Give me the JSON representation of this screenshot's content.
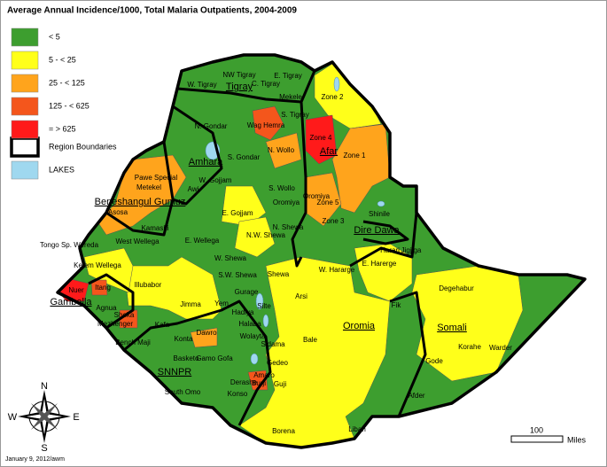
{
  "title": "Average Annual Incidence/1000, Total Malaria Outpatients, 2004-2009",
  "legend": [
    {
      "label": "< 5",
      "color": "#3d9e2f"
    },
    {
      "label": "5 - < 25",
      "color": "#ffff1a"
    },
    {
      "label": "25 - < 125",
      "color": "#ffa41c"
    },
    {
      "label": "125 - < 625",
      "color": "#f4561c"
    },
    {
      "label": "= > 625",
      "color": "#ff1a1a"
    }
  ],
  "region_boundaries_label": "Region Boundaries",
  "lakes_label": "LAKES",
  "lakes_color": "#9fd8ef",
  "regions": [
    "Tigray",
    "Amhara",
    "Afar",
    "Beneshangul Gumuz",
    "Dire Dawa",
    "Oromia",
    "Somali",
    "Gambella",
    "SNNPR"
  ],
  "zones": [
    {
      "label": "W. Tigray",
      "color": "#3d9e2f"
    },
    {
      "label": "NW Tigray",
      "color": "#3d9e2f"
    },
    {
      "label": "C. Tigray",
      "color": "#3d9e2f"
    },
    {
      "label": "E. Tigray",
      "color": "#3d9e2f"
    },
    {
      "label": "Mekele",
      "color": "#3d9e2f"
    },
    {
      "label": "S. Tigray",
      "color": "#3d9e2f"
    },
    {
      "label": "Zone 2",
      "color": "#ffff1a"
    },
    {
      "label": "N. Gondar",
      "color": "#3d9e2f"
    },
    {
      "label": "Wag Hemra",
      "color": "#f4561c"
    },
    {
      "label": "Zone 4",
      "color": "#ff1a1a"
    },
    {
      "label": "Zone 1",
      "color": "#ffa41c"
    },
    {
      "label": "S. Gondar",
      "color": "#3d9e2f"
    },
    {
      "label": "N. Wollo",
      "color": "#ffa41c"
    },
    {
      "label": "Awi",
      "color": "#3d9e2f"
    },
    {
      "label": "Metekel",
      "color": "#ffa41c"
    },
    {
      "label": "Pawe Special",
      "color": "#ffa41c"
    },
    {
      "label": "W. Gojjam",
      "color": "#3d9e2f"
    },
    {
      "label": "S. Wollo",
      "color": "#3d9e2f"
    },
    {
      "label": "Oromiya",
      "color": "#3d9e2f"
    },
    {
      "label": "Oromiya",
      "color": "#3d9e2f"
    },
    {
      "label": "Zone 5",
      "color": "#ffa41c"
    },
    {
      "label": "Zone 3",
      "color": "#3d9e2f"
    },
    {
      "label": "E. Gojjam",
      "color": "#ffff1a"
    },
    {
      "label": "Asosa",
      "color": "#ffa41c"
    },
    {
      "label": "Kamashi",
      "color": "#3d9e2f"
    },
    {
      "label": "N. Shewa",
      "color": "#3d9e2f"
    },
    {
      "label": "N.W. Shewa",
      "color": "#ffff1a"
    },
    {
      "label": "Tongo Sp. Wereda",
      "color": "#3d9e2f"
    },
    {
      "label": "West Wellega",
      "color": "#ffa41c"
    },
    {
      "label": "E. Wellega",
      "color": "#3d9e2f"
    },
    {
      "label": "Shinile",
      "color": "#3d9e2f"
    },
    {
      "label": "Harari",
      "color": "#3d9e2f"
    },
    {
      "label": "Jigjiga",
      "color": "#3d9e2f"
    },
    {
      "label": "Kelem Wellega",
      "color": "#ffff1a"
    },
    {
      "label": "W. Shewa",
      "color": "#3d9e2f"
    },
    {
      "label": "W. Hararge",
      "color": "#3d9e2f"
    },
    {
      "label": "E. Harerge",
      "color": "#ffff1a"
    },
    {
      "label": "Illubabor",
      "color": "#ffff1a"
    },
    {
      "label": "S.W. Shewa",
      "color": "#3d9e2f"
    },
    {
      "label": "Shewa",
      "color": "#ffff1a"
    },
    {
      "label": "Arsi",
      "color": "#ffff1a"
    },
    {
      "label": "Degehabur",
      "color": "#ffff1a"
    },
    {
      "label": "Nuer",
      "color": "#ff1a1a"
    },
    {
      "label": "Itang",
      "color": "#f4561c"
    },
    {
      "label": "Jimma",
      "color": "#ffff1a"
    },
    {
      "label": "Gurage",
      "color": "#3d9e2f"
    },
    {
      "label": "Yem",
      "color": "#3d9e2f"
    },
    {
      "label": "Silte",
      "color": "#3d9e2f"
    },
    {
      "label": "Hadiya",
      "color": "#3d9e2f"
    },
    {
      "label": "Agnua",
      "color": "#3d9e2f"
    },
    {
      "label": "Fik",
      "color": "#3d9e2f"
    },
    {
      "label": "Sheka",
      "color": "#f4561c"
    },
    {
      "label": "Kafa",
      "color": "#3d9e2f"
    },
    {
      "label": "Halaba",
      "color": "#ffff1a"
    },
    {
      "label": "Bale",
      "color": "#ffff1a"
    },
    {
      "label": "Mezhenger",
      "color": "#f4561c"
    },
    {
      "label": "Konta",
      "color": "#ffa41c"
    },
    {
      "label": "Dawro",
      "color": "#ffa41c"
    },
    {
      "label": "Wolayta",
      "color": "#3d9e2f"
    },
    {
      "label": "Sidama",
      "color": "#3d9e2f"
    },
    {
      "label": "Warder",
      "color": "#3d9e2f"
    },
    {
      "label": "Bench Maji",
      "color": "#3d9e2f"
    },
    {
      "label": "Korahe",
      "color": "#ffff1a"
    },
    {
      "label": "Gode",
      "color": "#3d9e2f"
    },
    {
      "label": "Basketo",
      "color": "#3d9e2f"
    },
    {
      "label": "Gamo Gofa",
      "color": "#3d9e2f"
    },
    {
      "label": "Gedeo",
      "color": "#3d9e2f"
    },
    {
      "label": "South Omo",
      "color": "#3d9e2f"
    },
    {
      "label": "Amaro",
      "color": "#f4561c"
    },
    {
      "label": "Derashe",
      "color": "#3d9e2f"
    },
    {
      "label": "Burji",
      "color": "#f4561c"
    },
    {
      "label": "Konso",
      "color": "#3d9e2f"
    },
    {
      "label": "Guji",
      "color": "#3d9e2f"
    },
    {
      "label": "Afder",
      "color": "#3d9e2f"
    },
    {
      "label": "Borena",
      "color": "#ffff1a"
    },
    {
      "label": "Liban",
      "color": "#3d9e2f"
    }
  ],
  "compass": {
    "north": "N",
    "east": "E",
    "south": "S",
    "west": "W"
  },
  "scale": {
    "distance": "100",
    "unit": "Miles"
  },
  "credit": "January 9, 2012/awm"
}
